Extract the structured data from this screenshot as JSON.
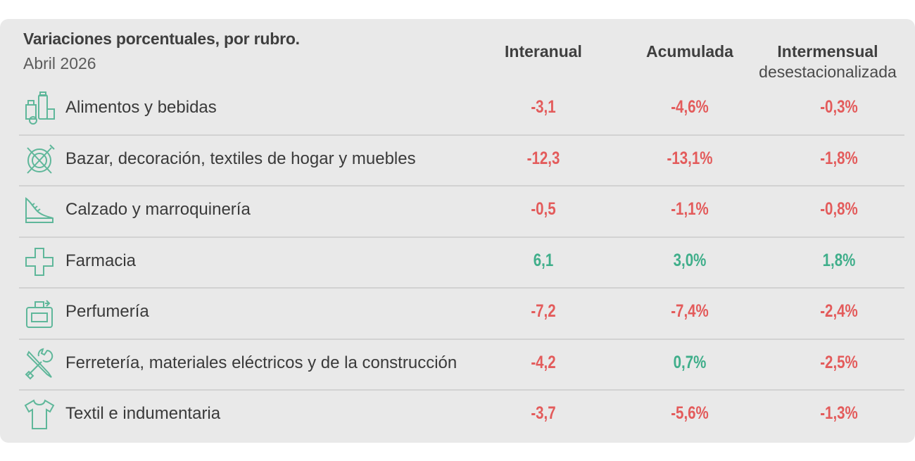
{
  "header": {
    "title": "Variaciones porcentuales, por rubro.",
    "subtitle": "Abril 2026",
    "columns": [
      {
        "label": "Interanual",
        "sub": ""
      },
      {
        "label": "Acumulada",
        "sub": ""
      },
      {
        "label": "Intermensual",
        "sub": "desestacionalizada"
      }
    ]
  },
  "colors": {
    "negative": "#e35b5b",
    "positive": "#3fae8a",
    "icon": "#5fb79a"
  },
  "chart_data": {
    "type": "table",
    "title": "Variaciones porcentuales, por rubro.",
    "subtitle": "Abril 2026",
    "columns": [
      "Interanual",
      "Acumulada",
      "Intermensual desestacionalizada"
    ],
    "rows": [
      {
        "rubro": "Alimentos y bebidas",
        "icon": "grocery-icon",
        "interanual": "-3,1",
        "acumulada": "-4,6%",
        "intermensual": "-0,3%",
        "sign": [
          -1,
          -1,
          -1
        ]
      },
      {
        "rubro": "Bazar, decoración, textiles de hogar y muebles",
        "icon": "tableware-icon",
        "interanual": "-12,3",
        "acumulada": "-13,1%",
        "intermensual": "-1,8%",
        "sign": [
          -1,
          -1,
          -1
        ]
      },
      {
        "rubro": "Calzado y marroquinería",
        "icon": "shoe-icon",
        "interanual": "-0,5",
        "acumulada": "-1,1%",
        "intermensual": "-0,8%",
        "sign": [
          -1,
          -1,
          -1
        ]
      },
      {
        "rubro": "Farmacia",
        "icon": "pharmacy-cross-icon",
        "interanual": "6,1",
        "acumulada": "3,0%",
        "intermensual": "1,8%",
        "sign": [
          1,
          1,
          1
        ]
      },
      {
        "rubro": "Perfumería",
        "icon": "perfume-icon",
        "interanual": "-7,2",
        "acumulada": "-7,4%",
        "intermensual": "-2,4%",
        "sign": [
          -1,
          -1,
          -1
        ]
      },
      {
        "rubro": "Ferretería, materiales eléctricos y de la construcción",
        "icon": "tools-icon",
        "interanual": "-4,2",
        "acumulada": "0,7%",
        "intermensual": "-2,5%",
        "sign": [
          -1,
          1,
          -1
        ]
      },
      {
        "rubro": "Textil e indumentaria",
        "icon": "shirt-icon",
        "interanual": "-3,7",
        "acumulada": "-5,6%",
        "intermensual": "-1,3%",
        "sign": [
          -1,
          -1,
          -1
        ]
      }
    ]
  }
}
